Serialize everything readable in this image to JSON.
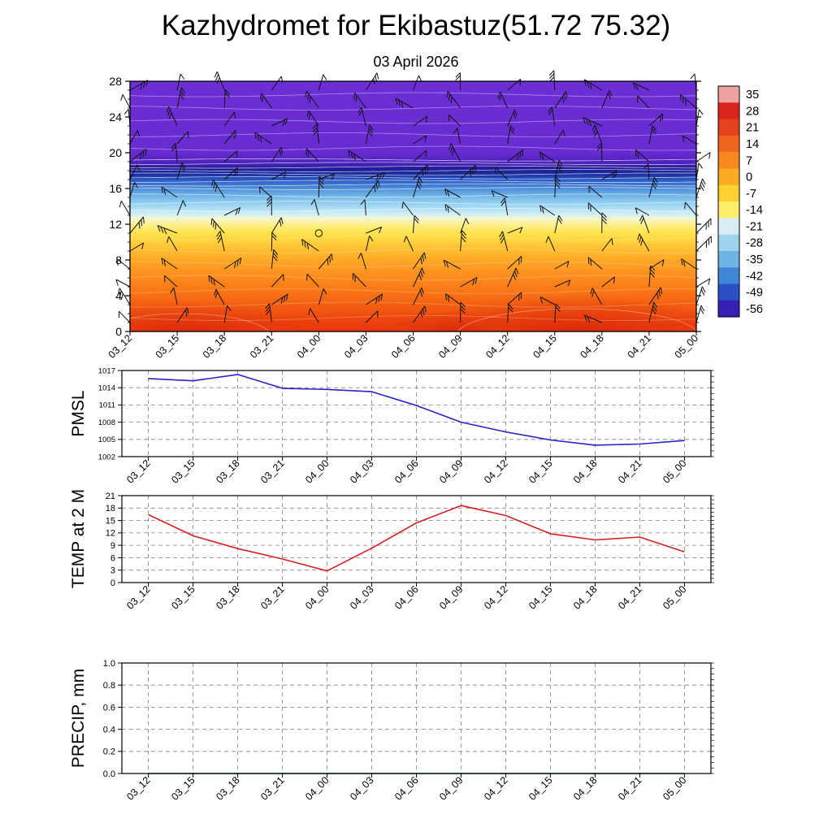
{
  "title": "Kazhydromet for Ekibastuz(51.72 75.32)",
  "subtitle": "03 April 2026",
  "time_labels": [
    "03_12",
    "03_15",
    "03_18",
    "03_21",
    "04_00",
    "04_03",
    "04_06",
    "04_09",
    "04_12",
    "04_15",
    "04_18",
    "04_21",
    "05_00"
  ],
  "chart_data": [
    {
      "type": "heatmap",
      "name": "upper air temperature cross-section",
      "description": "vertical temperature cross-section (height 0-28) with wind barbs",
      "ylim": [
        0,
        28
      ],
      "yticks": [
        0,
        4,
        8,
        12,
        16,
        20,
        24,
        28
      ],
      "categories": [
        "03_12",
        "03_15",
        "03_18",
        "03_21",
        "04_00",
        "04_03",
        "04_06",
        "04_09",
        "04_12",
        "04_15",
        "04_18",
        "04_21",
        "05_00"
      ],
      "wind_barbs": true,
      "calm_marker": {
        "time": "04_00",
        "altitude": 11
      },
      "colorbar": {
        "tick_labels": [
          "35",
          "28",
          "21",
          "14",
          "7",
          "0",
          "-7",
          "-14",
          "-21",
          "-28",
          "-35",
          "-42",
          "-49",
          "-56"
        ],
        "band_colors": [
          "#eda4a0",
          "#d9261c",
          "#e4421d",
          "#f0661e",
          "#f8891f",
          "#fcab24",
          "#ffd02f",
          "#fdee6a",
          "#d8eef2",
          "#9ed4ee",
          "#6fb5e4",
          "#3f86d4",
          "#2b50c4",
          "#3520b4"
        ]
      },
      "profile_stops": [
        {
          "alt": 28,
          "color": "#6c2fd4"
        },
        {
          "alt": 20,
          "color": "#672bd0"
        },
        {
          "alt": 18.8,
          "color": "#4a22bb"
        },
        {
          "alt": 18.2,
          "color": "#211c96"
        },
        {
          "alt": 17.6,
          "color": "#1b2f9e"
        },
        {
          "alt": 17.0,
          "color": "#2a57c4"
        },
        {
          "alt": 16.0,
          "color": "#4e8fd9"
        },
        {
          "alt": 15.0,
          "color": "#79bce9"
        },
        {
          "alt": 14.0,
          "color": "#a3d8f2"
        },
        {
          "alt": 13.2,
          "color": "#cdeef7"
        },
        {
          "alt": 12.6,
          "color": "#f6f7cf"
        },
        {
          "alt": 12.0,
          "color": "#fdf08e"
        },
        {
          "alt": 11.0,
          "color": "#ffe34d"
        },
        {
          "alt": 10.0,
          "color": "#ffd03c"
        },
        {
          "alt": 9.0,
          "color": "#ffbb30"
        },
        {
          "alt": 8.0,
          "color": "#ffa827"
        },
        {
          "alt": 6.5,
          "color": "#fd9120"
        },
        {
          "alt": 5.0,
          "color": "#fa7d19"
        },
        {
          "alt": 3.5,
          "color": "#f66713"
        },
        {
          "alt": 2.0,
          "color": "#f0500f"
        },
        {
          "alt": 1.0,
          "color": "#ec3f0e"
        },
        {
          "alt": 0,
          "color": "#e8350f"
        }
      ]
    },
    {
      "type": "line",
      "name": "PMSL",
      "line_color": "#2424c8",
      "categories": [
        "03_12",
        "03_15",
        "03_18",
        "03_21",
        "04_00",
        "04_03",
        "04_06",
        "04_09",
        "04_12",
        "04_15",
        "04_18",
        "04_21",
        "05_00"
      ],
      "values": [
        1015.6,
        1015.2,
        1016.3,
        1013.9,
        1013.7,
        1013.3,
        1010.9,
        1008.0,
        1006.3,
        1004.9,
        1004.0,
        1004.2,
        1004.8
      ],
      "ylim": [
        1002,
        1017
      ],
      "yticks": [
        1002,
        1005,
        1008,
        1011,
        1014,
        1017
      ],
      "ytick_labels": [
        "1002",
        "1005",
        "1008",
        "1011",
        "1014",
        "1017"
      ],
      "minor_step": 1,
      "grid": "dashed"
    },
    {
      "type": "line",
      "name": "TEMP at 2 M",
      "line_color": "#d42020",
      "categories": [
        "03_12",
        "03_15",
        "03_18",
        "03_21",
        "04_00",
        "04_03",
        "04_06",
        "04_09",
        "04_12",
        "04_15",
        "04_18",
        "04_21",
        "05_00"
      ],
      "values": [
        16.4,
        11.3,
        8.2,
        5.7,
        2.8,
        8.3,
        14.4,
        18.6,
        16.2,
        11.8,
        10.3,
        11.0,
        7.4
      ],
      "ylim": [
        0,
        21
      ],
      "yticks": [
        0,
        3,
        6,
        9,
        12,
        15,
        18,
        21
      ],
      "ytick_labels": [
        "0",
        "3",
        "6",
        "9",
        "12",
        "15",
        "18",
        "21"
      ],
      "minor_step": 1,
      "grid": "dashed"
    },
    {
      "type": "line",
      "name": "PRECIP, mm",
      "line_color": "#0a6b1e",
      "categories": [
        "03_12",
        "03_15",
        "03_18",
        "03_21",
        "04_00",
        "04_03",
        "04_06",
        "04_09",
        "04_12",
        "04_15",
        "04_18",
        "04_21",
        "05_00"
      ],
      "values": [
        0,
        0,
        0,
        0,
        0,
        0,
        0,
        0,
        0,
        0,
        0,
        0,
        0
      ],
      "ylim": [
        0,
        1.0
      ],
      "yticks": [
        0,
        0.2,
        0.4,
        0.6,
        0.8,
        1.0
      ],
      "ytick_labels": [
        "0.0",
        "0.2",
        "0.4",
        "0.6",
        "0.8",
        "1.0"
      ],
      "minor_step": 0.05,
      "grid": "dashed"
    }
  ]
}
